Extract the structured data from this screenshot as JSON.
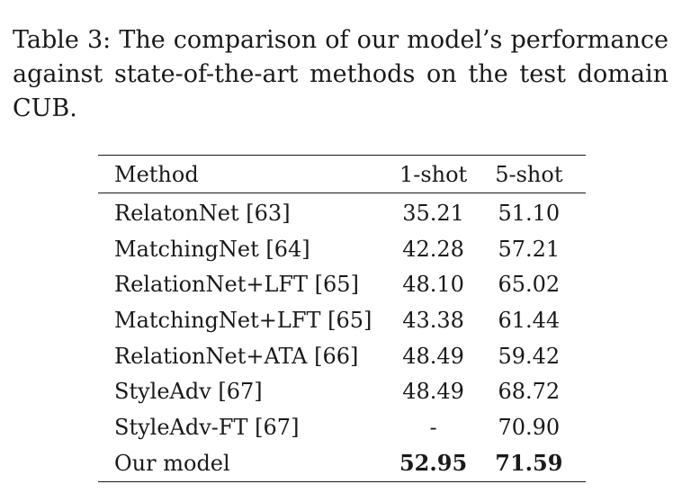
{
  "caption": {
    "lines": [
      "Table 3: The comparison of our model’s performance",
      "against state-of-the-art methods on the test domain",
      "CUB."
    ]
  },
  "table": {
    "headers": [
      "Method",
      "1-shot",
      "5-shot"
    ],
    "rows": [
      {
        "method": "RelatonNet [63]",
        "one_shot": "35.21",
        "five_shot": "51.10"
      },
      {
        "method": "MatchingNet [64]",
        "one_shot": "42.28",
        "five_shot": "57.21"
      },
      {
        "method": "RelationNet+LFT [65]",
        "one_shot": "48.10",
        "five_shot": "65.02"
      },
      {
        "method": "MatchingNet+LFT [65]",
        "one_shot": "43.38",
        "five_shot": "61.44"
      },
      {
        "method": "RelationNet+ATA [66]",
        "one_shot": "48.49",
        "five_shot": "59.42"
      },
      {
        "method": "StyleAdv [67]",
        "one_shot": "48.49",
        "five_shot": "68.72"
      },
      {
        "method": "StyleAdv-FT [67]",
        "one_shot": "-",
        "five_shot": "70.90"
      },
      {
        "method": "Our model",
        "one_shot": "52.95",
        "five_shot": "71.59"
      }
    ]
  }
}
